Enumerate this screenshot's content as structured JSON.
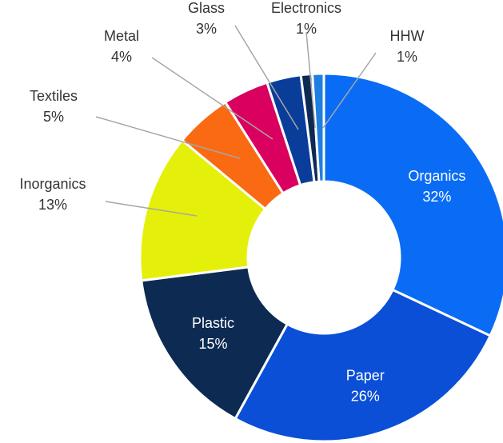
{
  "chart_data": {
    "type": "pie",
    "variant": "donut",
    "title": "",
    "slices": [
      {
        "label": "Organics",
        "value": 32,
        "display": "32%",
        "color": "#0a6cf5",
        "label_style": "inside"
      },
      {
        "label": "Paper",
        "value": 26,
        "display": "26%",
        "color": "#0a4fd6",
        "label_style": "inside"
      },
      {
        "label": "Plastic",
        "value": 15,
        "display": "15%",
        "color": "#0d2b52",
        "label_style": "inside"
      },
      {
        "label": "Inorganics",
        "value": 13,
        "display": "13%",
        "color": "#e5f00a",
        "label_style": "outside"
      },
      {
        "label": "Textiles",
        "value": 5,
        "display": "5%",
        "color": "#fa6a12",
        "label_style": "outside"
      },
      {
        "label": "Metal",
        "value": 4,
        "display": "4%",
        "color": "#d9005f",
        "label_style": "outside"
      },
      {
        "label": "Glass",
        "value": 3,
        "display": "3%",
        "color": "#0a3d9a",
        "label_style": "outside"
      },
      {
        "label": "Electronics",
        "value": 1,
        "display": "1%",
        "color": "#0d2b52",
        "label_style": "outside"
      },
      {
        "label": "HHW",
        "value": 1,
        "display": "1%",
        "color": "#1f7fe0",
        "label_style": "outside"
      }
    ],
    "legend": "none"
  }
}
